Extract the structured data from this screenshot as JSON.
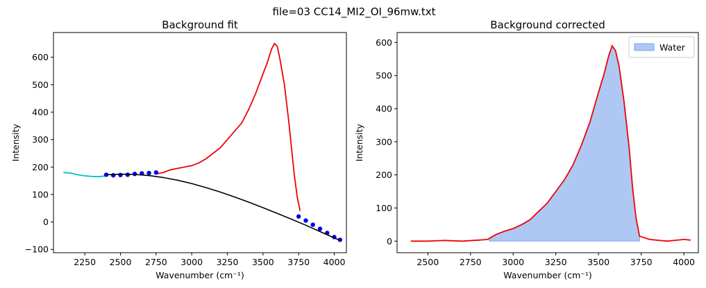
{
  "figure": {
    "suptitle": "file=03 CC14_MI2_OI_96mw.txt"
  },
  "colors": {
    "raw": "#ee0000",
    "bg_region": "#00bfbf",
    "bg_points": "#0000ee",
    "fit": "#000000",
    "water_fill": "#aec7f3",
    "water_edge": "#7fa3ee"
  },
  "chart_data": [
    {
      "type": "line",
      "title": "Background fit",
      "xlabel": "Wavenumber (cm⁻¹)",
      "ylabel": "Intensity",
      "xlim": [
        2030,
        4085
      ],
      "ylim": [
        -112,
        690
      ],
      "xticks": [
        2250,
        2500,
        2750,
        3000,
        3250,
        3500,
        3750,
        4000
      ],
      "yticks": [
        -100,
        0,
        100,
        200,
        300,
        400,
        500,
        600
      ],
      "series": [
        {
          "role": "raw-spectrum",
          "x": [
            2750,
            2800,
            2850,
            2900,
            2950,
            3000,
            3050,
            3100,
            3150,
            3200,
            3250,
            3300,
            3350,
            3400,
            3450,
            3500,
            3530,
            3560,
            3580,
            3600,
            3620,
            3650,
            3680,
            3700,
            3720,
            3740,
            3760
          ],
          "y": [
            175,
            180,
            190,
            195,
            200,
            205,
            215,
            230,
            250,
            270,
            300,
            330,
            360,
            410,
            470,
            540,
            580,
            630,
            650,
            640,
            590,
            500,
            370,
            270,
            170,
            90,
            40
          ]
        },
        {
          "role": "background-region",
          "x": [
            2100,
            2150,
            2200,
            2250,
            2300,
            2350,
            2400
          ],
          "y": [
            180,
            178,
            172,
            168,
            166,
            165,
            168
          ]
        },
        {
          "role": "background-points",
          "x": [
            2400,
            2450,
            2500,
            2550,
            2600,
            2650,
            2700,
            2750,
            3750,
            3800,
            3850,
            3900,
            3950,
            4000,
            4040
          ],
          "y": [
            172,
            170,
            171,
            172,
            175,
            177,
            178,
            180,
            20,
            5,
            -10,
            -25,
            -40,
            -55,
            -65
          ]
        },
        {
          "role": "background-fit",
          "x": [
            2400,
            2500,
            2600,
            2700,
            2800,
            2900,
            3000,
            3100,
            3200,
            3300,
            3400,
            3500,
            3600,
            3700,
            3800,
            3900,
            4000,
            4040
          ],
          "y": [
            172,
            174,
            173,
            169,
            162,
            152,
            140,
            125,
            109,
            91,
            72,
            52,
            31,
            10,
            -12,
            -35,
            -58,
            -67
          ]
        }
      ]
    },
    {
      "type": "area",
      "title": "Background corrected",
      "xlabel": "Wavenumber (cm⁻¹)",
      "ylabel": "Intensity",
      "xlim": [
        2320,
        4085
      ],
      "ylim": [
        -35,
        630
      ],
      "xticks": [
        2500,
        2750,
        3000,
        3250,
        3500,
        3750,
        4000
      ],
      "yticks": [
        0,
        100,
        200,
        300,
        400,
        500,
        600
      ],
      "legend": {
        "placement": "top-right",
        "entries": [
          "Water"
        ]
      },
      "series": [
        {
          "role": "corrected-spectrum",
          "x": [
            2400,
            2500,
            2600,
            2700,
            2800,
            2850,
            2900,
            2950,
            3000,
            3050,
            3100,
            3150,
            3200,
            3250,
            3300,
            3350,
            3400,
            3450,
            3500,
            3530,
            3560,
            3580,
            3600,
            3620,
            3650,
            3680,
            3700,
            3720,
            3740,
            3800,
            3900,
            4000,
            4040
          ],
          "y": [
            0,
            0,
            2,
            0,
            3,
            5,
            20,
            30,
            38,
            50,
            65,
            90,
            115,
            150,
            185,
            230,
            290,
            360,
            450,
            500,
            560,
            590,
            575,
            530,
            420,
            280,
            160,
            70,
            15,
            5,
            0,
            5,
            3
          ]
        },
        {
          "role": "water-area",
          "name": "Water",
          "x": [
            2860,
            2900,
            2950,
            3000,
            3050,
            3100,
            3150,
            3200,
            3250,
            3300,
            3350,
            3400,
            3450,
            3500,
            3530,
            3560,
            3580,
            3600,
            3620,
            3650,
            3680,
            3700,
            3720,
            3740
          ],
          "y": [
            8,
            20,
            30,
            38,
            50,
            65,
            90,
            115,
            150,
            185,
            230,
            290,
            360,
            450,
            500,
            560,
            590,
            575,
            530,
            420,
            280,
            160,
            70,
            15
          ]
        }
      ]
    }
  ]
}
